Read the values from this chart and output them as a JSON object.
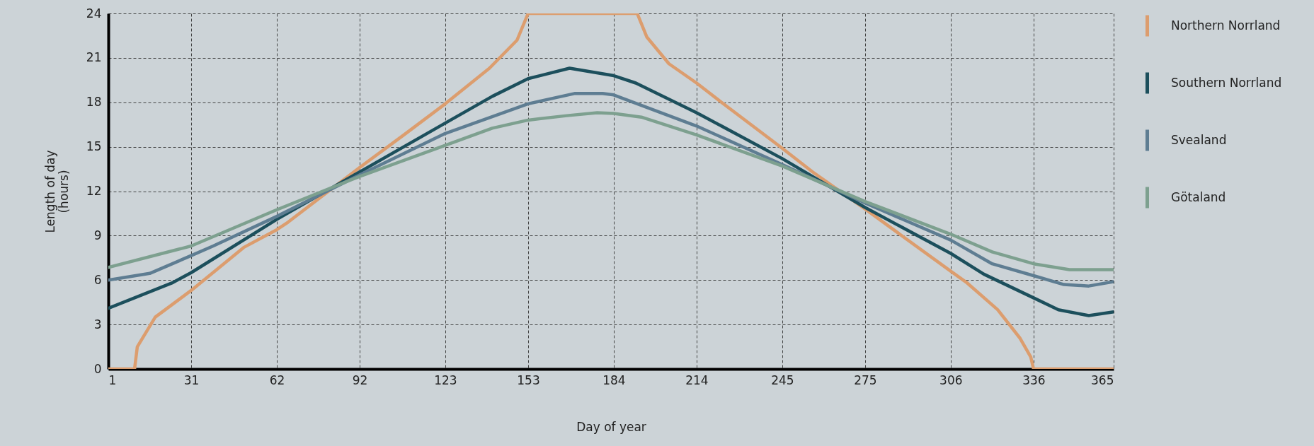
{
  "chart_data": {
    "type": "line",
    "xlabel": "Day of year",
    "ylabel": "Length of day\n(hours)",
    "xlim": [
      1,
      365
    ],
    "xticks": [
      1,
      31,
      62,
      92,
      123,
      153,
      184,
      214,
      245,
      275,
      306,
      336,
      365
    ],
    "ylim": [
      0,
      24
    ],
    "yticks": [
      0,
      3,
      6,
      9,
      12,
      15,
      18,
      21,
      24
    ],
    "grid": true,
    "legend": "right",
    "line_style": "solid",
    "marker": "none",
    "series": [
      {
        "name": "Northern Norrland",
        "color": "#dc9d6e",
        "x": [
          1,
          10.5,
          11.5,
          18,
          31,
          50,
          62,
          66,
          92,
          108,
          123,
          139,
          149,
          153,
          192.5,
          196,
          204,
          214,
          223,
          245,
          256,
          275,
          306,
          312,
          323,
          331,
          335,
          336,
          365
        ],
        "values": [
          0,
          0,
          1.5,
          3.5,
          5.3,
          8.2,
          9.4,
          9.9,
          13.6,
          15.8,
          17.9,
          20.3,
          22.2,
          24,
          24,
          22.4,
          20.6,
          19.3,
          18,
          14.9,
          13.3,
          10.8,
          6.6,
          5.8,
          4,
          2.1,
          0.8,
          0,
          0
        ]
      },
      {
        "name": "Southern Norrland",
        "color": "#1c4f5c",
        "x": [
          1,
          24,
          31,
          62,
          92,
          123,
          140,
          153,
          168,
          184,
          192,
          214,
          245,
          275,
          306,
          318,
          336,
          345,
          356,
          365
        ],
        "values": [
          4.1,
          5.8,
          6.5,
          10.1,
          13.3,
          16.6,
          18.4,
          19.6,
          20.3,
          19.8,
          19.3,
          17.3,
          14.2,
          10.9,
          7.8,
          6.4,
          4.8,
          4,
          3.6,
          3.85
        ]
      },
      {
        "name": "Svealand",
        "color": "#5e7d92",
        "x": [
          1,
          16,
          31,
          39,
          62,
          92,
          123,
          153,
          170,
          180,
          184,
          214,
          245,
          275,
          306,
          321,
          336,
          347,
          356,
          365
        ],
        "values": [
          6,
          6.45,
          7.65,
          8.3,
          10.3,
          13.1,
          15.9,
          17.9,
          18.6,
          18.6,
          18.5,
          16.4,
          13.8,
          11.2,
          8.7,
          7.1,
          6.3,
          5.7,
          5.6,
          5.9
        ]
      },
      {
        "name": "Götaland",
        "color": "#7da08f",
        "x": [
          1,
          31,
          62,
          92,
          123,
          140,
          153,
          167,
          178,
          184,
          194,
          214,
          245,
          275,
          306,
          321,
          336,
          349,
          365
        ],
        "values": [
          6.85,
          8.3,
          10.75,
          13,
          15.1,
          16.25,
          16.8,
          17.1,
          17.3,
          17.25,
          17,
          15.8,
          13.7,
          11.3,
          9.1,
          7.9,
          7.1,
          6.7,
          6.7
        ]
      }
    ]
  }
}
